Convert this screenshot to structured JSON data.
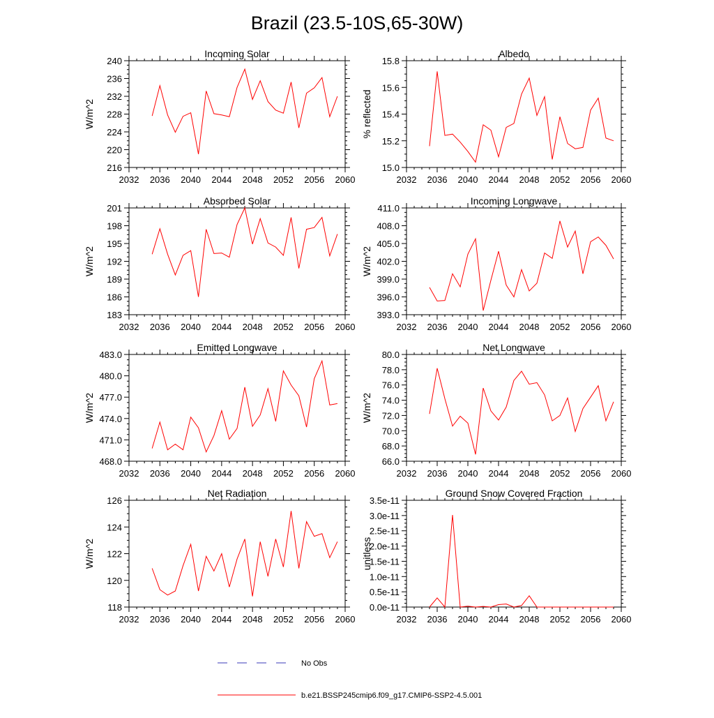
{
  "main_title": "Brazil (23.5-10S,65-30W)",
  "legend": {
    "obs_label": "No Obs",
    "model_label": "b.e21.BSSP245cmip6.f09_g17.CMIP6-SSP2-4.5.001",
    "obs_color": "#3a3ab8",
    "model_color": "#ff0000"
  },
  "chart_data": [
    {
      "type": "line",
      "title": "Incoming Solar",
      "ylabel": "W/m^2",
      "xlim": [
        2032,
        2060
      ],
      "xticks": [
        "2032",
        "2036",
        "2040",
        "2044",
        "2048",
        "2052",
        "2056",
        "2060"
      ],
      "ylim": [
        216,
        240
      ],
      "yticks": [
        "216",
        "220",
        "224",
        "228",
        "232",
        "236",
        "240"
      ],
      "x": [
        2035,
        2036,
        2037,
        2038,
        2039,
        2040,
        2041,
        2042,
        2043,
        2044,
        2045,
        2046,
        2047,
        2048,
        2049,
        2050,
        2051,
        2052,
        2053,
        2054,
        2055,
        2056,
        2057,
        2058,
        2059
      ],
      "values": [
        227.6,
        234.4,
        227.8,
        223.9,
        227.5,
        228.3,
        219.0,
        233.2,
        228.1,
        227.8,
        227.4,
        234.0,
        238.1,
        231.3,
        235.5,
        230.8,
        228.9,
        228.2,
        235.2,
        224.9,
        232.7,
        233.9,
        236.2,
        227.4,
        232.0
      ]
    },
    {
      "type": "line",
      "title": "Albedo",
      "ylabel": "% reflected",
      "xlim": [
        2032,
        2060
      ],
      "xticks": [
        "2032",
        "2036",
        "2040",
        "2044",
        "2048",
        "2052",
        "2056",
        "2060"
      ],
      "ylim": [
        15.0,
        15.8
      ],
      "yticks": [
        "15.0",
        "15.2",
        "15.4",
        "15.6",
        "15.8"
      ],
      "x": [
        2035,
        2036,
        2037,
        2038,
        2039,
        2040,
        2041,
        2042,
        2043,
        2044,
        2045,
        2046,
        2047,
        2048,
        2049,
        2050,
        2051,
        2052,
        2053,
        2054,
        2055,
        2056,
        2057,
        2058,
        2059
      ],
      "values": [
        15.16,
        15.72,
        15.24,
        15.25,
        15.19,
        15.12,
        15.04,
        15.32,
        15.28,
        15.08,
        15.3,
        15.33,
        15.55,
        15.67,
        15.39,
        15.53,
        15.06,
        15.38,
        15.18,
        15.14,
        15.15,
        15.43,
        15.52,
        15.22,
        15.2
      ]
    },
    {
      "type": "line",
      "title": "Absorbed Solar",
      "ylabel": "W/m^2",
      "xlim": [
        2032,
        2060
      ],
      "xticks": [
        "2032",
        "2036",
        "2040",
        "2044",
        "2048",
        "2052",
        "2056",
        "2060"
      ],
      "ylim": [
        183,
        201
      ],
      "yticks": [
        "183",
        "186",
        "189",
        "192",
        "195",
        "198",
        "201"
      ],
      "x": [
        2035,
        2036,
        2037,
        2038,
        2039,
        2040,
        2041,
        2042,
        2043,
        2044,
        2045,
        2046,
        2047,
        2048,
        2049,
        2050,
        2051,
        2052,
        2053,
        2054,
        2055,
        2056,
        2057,
        2058,
        2059
      ],
      "values": [
        193.2,
        197.5,
        193.2,
        189.7,
        193.0,
        193.8,
        186.0,
        197.4,
        193.3,
        193.4,
        192.7,
        198.2,
        201.0,
        194.9,
        199.2,
        195.1,
        194.4,
        193.0,
        199.4,
        190.8,
        197.4,
        197.7,
        199.4,
        192.9,
        196.6
      ]
    },
    {
      "type": "line",
      "title": "Incoming Longwave",
      "ylabel": "W/m^2",
      "xlim": [
        2032,
        2060
      ],
      "xticks": [
        "2032",
        "2036",
        "2040",
        "2044",
        "2048",
        "2052",
        "2056",
        "2060"
      ],
      "ylim": [
        393.0,
        411.0
      ],
      "yticks": [
        "393.0",
        "396.0",
        "399.0",
        "402.0",
        "405.0",
        "408.0",
        "411.0"
      ],
      "x": [
        2035,
        2036,
        2037,
        2038,
        2039,
        2040,
        2041,
        2042,
        2043,
        2044,
        2045,
        2046,
        2047,
        2048,
        2049,
        2050,
        2051,
        2052,
        2053,
        2054,
        2055,
        2056,
        2057,
        2058,
        2059
      ],
      "values": [
        397.6,
        395.3,
        395.4,
        399.9,
        397.7,
        403.2,
        405.8,
        393.7,
        398.8,
        403.7,
        398.0,
        396.0,
        400.6,
        397.0,
        398.3,
        403.4,
        402.5,
        408.8,
        404.4,
        407.1,
        399.9,
        405.3,
        406.1,
        404.7,
        402.4
      ]
    },
    {
      "type": "line",
      "title": "Emitted Longwave",
      "ylabel": "W/m^2",
      "xlim": [
        2032,
        2060
      ],
      "xticks": [
        "2032",
        "2036",
        "2040",
        "2044",
        "2048",
        "2052",
        "2056",
        "2060"
      ],
      "ylim": [
        468.0,
        483.0
      ],
      "yticks": [
        "468.0",
        "471.0",
        "474.0",
        "477.0",
        "480.0",
        "483.0"
      ],
      "x": [
        2035,
        2036,
        2037,
        2038,
        2039,
        2040,
        2041,
        2042,
        2043,
        2044,
        2045,
        2046,
        2047,
        2048,
        2049,
        2050,
        2051,
        2052,
        2053,
        2054,
        2055,
        2056,
        2057,
        2058,
        2059
      ],
      "values": [
        469.8,
        473.5,
        469.6,
        470.4,
        469.6,
        474.2,
        472.7,
        469.3,
        471.6,
        475.1,
        471.1,
        472.6,
        478.4,
        472.9,
        474.5,
        478.2,
        473.6,
        480.7,
        478.7,
        477.2,
        472.8,
        479.6,
        482.1,
        475.9,
        476.1
      ]
    },
    {
      "type": "line",
      "title": "Net Longwave",
      "ylabel": "W/m^2",
      "xlim": [
        2032,
        2060
      ],
      "xticks": [
        "2032",
        "2036",
        "2040",
        "2044",
        "2048",
        "2052",
        "2056",
        "2060"
      ],
      "ylim": [
        66.0,
        80.0
      ],
      "yticks": [
        "66.0",
        "68.0",
        "70.0",
        "72.0",
        "74.0",
        "76.0",
        "78.0",
        "80.0"
      ],
      "x": [
        2035,
        2036,
        2037,
        2038,
        2039,
        2040,
        2041,
        2042,
        2043,
        2044,
        2045,
        2046,
        2047,
        2048,
        2049,
        2050,
        2051,
        2052,
        2053,
        2054,
        2055,
        2056,
        2057,
        2058,
        2059
      ],
      "values": [
        72.2,
        78.2,
        74.2,
        70.6,
        71.9,
        71.0,
        66.9,
        75.6,
        72.6,
        71.4,
        73.1,
        76.6,
        77.8,
        76.1,
        76.3,
        74.7,
        71.3,
        72.0,
        74.3,
        69.9,
        72.9,
        74.4,
        75.9,
        71.3,
        73.8
      ]
    },
    {
      "type": "line",
      "title": "Net Radiation",
      "ylabel": "W/m^2",
      "xlim": [
        2032,
        2060
      ],
      "xticks": [
        "2032",
        "2036",
        "2040",
        "2044",
        "2048",
        "2052",
        "2056",
        "2060"
      ],
      "ylim": [
        118,
        126
      ],
      "yticks": [
        "118",
        "120",
        "122",
        "124",
        "126"
      ],
      "x": [
        2035,
        2036,
        2037,
        2038,
        2039,
        2040,
        2041,
        2042,
        2043,
        2044,
        2045,
        2046,
        2047,
        2048,
        2049,
        2050,
        2051,
        2052,
        2053,
        2054,
        2055,
        2056,
        2057,
        2058,
        2059
      ],
      "values": [
        120.9,
        119.3,
        118.9,
        119.2,
        121.1,
        122.7,
        119.2,
        121.8,
        120.7,
        122.0,
        119.5,
        121.6,
        123.1,
        118.8,
        122.9,
        120.3,
        123.1,
        121.0,
        125.2,
        120.9,
        124.4,
        123.3,
        123.5,
        121.7,
        122.9
      ]
    },
    {
      "type": "line",
      "title": "Ground Snow Covered Fraction",
      "ylabel": "unitless",
      "xlim": [
        2032,
        2060
      ],
      "xticks": [
        "2032",
        "2036",
        "2040",
        "2044",
        "2048",
        "2052",
        "2056",
        "2060"
      ],
      "ylim": [
        0.0,
        3.5e-11
      ],
      "yticks": [
        "0.0e-11",
        "0.5e-11",
        "1.0e-11",
        "1.5e-11",
        "2.0e-11",
        "2.5e-11",
        "3.0e-11",
        "3.5e-11"
      ],
      "x": [
        2035,
        2036,
        2037,
        2038,
        2039,
        2040,
        2041,
        2042,
        2043,
        2044,
        2045,
        2046,
        2047,
        2048,
        2049,
        2050,
        2051,
        2052,
        2053,
        2054,
        2055,
        2056,
        2057,
        2058,
        2059
      ],
      "values": [
        0.0,
        3e-12,
        0.0,
        3.02e-11,
        0.0,
        3e-13,
        0.0,
        2e-13,
        0.0,
        8e-13,
        1e-12,
        0.0,
        5e-13,
        3.7e-12,
        0.0,
        0.0,
        0.0,
        0.0,
        0.0,
        0.0,
        0.0,
        0.0,
        0.0,
        0.0,
        0.0
      ]
    }
  ]
}
